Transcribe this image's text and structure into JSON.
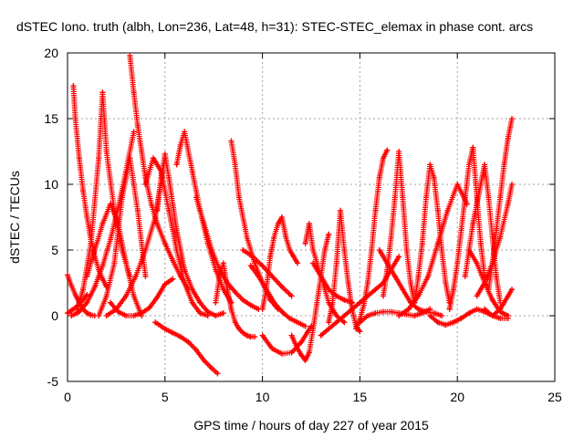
{
  "chart_data": {
    "type": "scatter",
    "title": "dSTEC Iono. truth (albh, Lon=236, Lat=48, h=31): STEC-STEC_elemax in phase cont. arcs",
    "xlabel": "GPS time / hours of day 227 of year 2015",
    "ylabel": "dSTEC  / TECUs",
    "xlim": [
      0,
      25
    ],
    "ylim": [
      -5,
      20
    ],
    "x_ticks": [
      "0",
      "5",
      "10",
      "15",
      "20",
      "25"
    ],
    "y_ticks": [
      "-5",
      "0",
      "5",
      "10",
      "15",
      "20"
    ],
    "grid": true,
    "marker": "+",
    "color": "#ff0000",
    "series": [
      {
        "x": [
          0.0,
          0.2,
          0.4,
          0.6,
          0.8,
          1.0,
          1.2,
          1.4
        ],
        "y": [
          3.1,
          2.3,
          1.6,
          1.0,
          0.5,
          0.2,
          0.05,
          0.0
        ]
      },
      {
        "x": [
          0.0,
          0.2,
          0.4,
          0.6,
          0.8,
          1.0
        ],
        "y": [
          0.2,
          0.4,
          0.6,
          0.9,
          1.2,
          1.6
        ]
      },
      {
        "x": [
          0.3,
          0.4,
          0.6,
          0.8,
          1.0,
          1.2,
          1.4,
          1.6,
          1.8,
          2.0
        ],
        "y": [
          17.5,
          15.0,
          12.0,
          9.5,
          7.5,
          5.8,
          4.5,
          3.5,
          2.8,
          2.2
        ]
      },
      {
        "x": [
          0.2,
          0.6,
          1.0,
          1.4,
          1.8,
          2.2,
          2.6,
          3.0,
          3.4
        ],
        "y": [
          0.0,
          0.3,
          1.0,
          2.2,
          3.8,
          5.8,
          8.2,
          11.0,
          14.0
        ]
      },
      {
        "x": [
          0.5,
          0.8,
          1.2,
          1.6,
          1.8,
          2.0,
          2.4,
          2.8,
          3.2
        ],
        "y": [
          0.5,
          2.0,
          5.5,
          12.0,
          17.0,
          12.5,
          8.0,
          5.0,
          3.0
        ]
      },
      {
        "x": [
          1.0,
          1.4,
          1.8,
          2.2,
          2.6,
          3.0,
          3.4,
          3.8
        ],
        "y": [
          3.0,
          5.0,
          7.0,
          8.5,
          7.0,
          4.0,
          1.5,
          0.0
        ]
      },
      {
        "x": [
          1.6,
          2.0,
          2.4,
          2.8,
          3.2,
          3.6,
          4.0
        ],
        "y": [
          0.0,
          1.5,
          4.0,
          9.0,
          12.0,
          8.0,
          3.0
        ]
      },
      {
        "x": [
          3.2,
          3.4,
          3.6,
          3.8,
          4.0,
          4.3,
          4.6,
          5.0,
          5.4,
          5.8,
          6.2
        ],
        "y": [
          19.8,
          17.0,
          14.5,
          12.5,
          10.5,
          8.5,
          7.0,
          5.5,
          4.2,
          3.0,
          2.0
        ]
      },
      {
        "x": [
          2.0,
          2.5,
          3.0,
          3.5,
          4.0,
          4.5,
          5.0
        ],
        "y": [
          0.0,
          0.5,
          1.5,
          3.0,
          5.0,
          7.5,
          12.0
        ]
      },
      {
        "x": [
          2.2,
          2.6,
          3.0,
          3.4,
          3.8,
          4.2,
          4.6,
          5.0,
          5.4
        ],
        "y": [
          1.0,
          0.3,
          0.0,
          0.0,
          0.2,
          0.6,
          1.4,
          2.4,
          2.8
        ]
      },
      {
        "x": [
          4.5,
          5.0,
          5.4,
          5.8,
          6.2,
          6.6,
          7.0,
          7.4,
          7.7
        ],
        "y": [
          -0.5,
          -1.0,
          -1.3,
          -1.6,
          -2.0,
          -2.6,
          -3.4,
          -4.0,
          -4.4
        ]
      },
      {
        "x": [
          4.6,
          4.8,
          5.0,
          5.2,
          5.4,
          5.6,
          5.8,
          6.0,
          6.4,
          6.8,
          7.2,
          7.6,
          8.0
        ],
        "y": [
          8.0,
          10.5,
          12.3,
          10.5,
          8.5,
          6.5,
          5.0,
          3.5,
          2.0,
          1.0,
          0.3,
          0.0,
          0.2
        ]
      },
      {
        "x": [
          5.6,
          5.8,
          6.0,
          6.4,
          6.8,
          7.2,
          7.6,
          8.0,
          8.4
        ],
        "y": [
          11.5,
          13.0,
          14.0,
          11.0,
          8.0,
          5.5,
          3.5,
          2.0,
          1.0
        ]
      },
      {
        "x": [
          4.0,
          4.4,
          4.8,
          5.2,
          5.6,
          6.0,
          6.4,
          6.8,
          7.2
        ],
        "y": [
          10.0,
          12.0,
          11.0,
          8.0,
          5.0,
          2.5,
          1.0,
          0.2,
          0.0
        ]
      },
      {
        "x": [
          6.6,
          7.0,
          7.4,
          7.8,
          8.2,
          8.6,
          9.0,
          9.4,
          9.8
        ],
        "y": [
          9.0,
          7.0,
          5.0,
          3.5,
          2.5,
          1.8,
          1.2,
          0.8,
          0.5
        ]
      },
      {
        "x": [
          7.6,
          7.8,
          8.0,
          8.2,
          8.4,
          8.6,
          8.8,
          9.0,
          9.2,
          9.4,
          9.6
        ],
        "y": [
          1.0,
          3.0,
          4.0,
          2.0,
          0.5,
          -0.5,
          -1.0,
          -1.3,
          -1.5,
          -1.6,
          -1.6
        ]
      },
      {
        "x": [
          8.4,
          8.6,
          8.8,
          9.2,
          9.6,
          10.0,
          10.4,
          10.8
        ],
        "y": [
          13.3,
          11.5,
          9.0,
          6.0,
          4.0,
          2.5,
          1.2,
          0.5
        ]
      },
      {
        "x": [
          9.0,
          9.5,
          10.0,
          10.5,
          11.0,
          11.5
        ],
        "y": [
          5.0,
          4.5,
          3.8,
          3.0,
          2.2,
          1.5
        ]
      },
      {
        "x": [
          9.4,
          9.8,
          10.2,
          10.6,
          11.0,
          11.4,
          11.8,
          12.2
        ],
        "y": [
          3.8,
          3.0,
          2.0,
          1.0,
          0.3,
          -0.2,
          -0.5,
          -0.8
        ]
      },
      {
        "x": [
          10.0,
          10.2,
          10.4,
          10.6,
          10.8,
          11.0,
          11.2,
          11.4,
          11.6,
          11.8
        ],
        "y": [
          0.5,
          2.0,
          4.5,
          6.0,
          7.0,
          7.5,
          6.0,
          5.0,
          4.5,
          4.0
        ]
      },
      {
        "x": [
          10.0,
          10.5,
          11.0,
          11.5,
          12.0,
          12.5
        ],
        "y": [
          -1.5,
          -2.5,
          -2.9,
          -2.8,
          -2.0,
          -0.8
        ]
      },
      {
        "x": [
          11.5,
          11.8,
          12.0,
          12.2,
          12.4,
          12.6,
          12.8,
          13.0,
          13.2,
          13.4
        ],
        "y": [
          -1.5,
          -2.5,
          -3.0,
          -3.4,
          -2.8,
          -1.0,
          1.0,
          3.0,
          5.0,
          6.2
        ]
      },
      {
        "x": [
          12.2,
          12.4,
          12.6,
          13.0,
          13.4,
          13.8,
          14.2
        ],
        "y": [
          5.5,
          7.0,
          5.0,
          3.0,
          1.0,
          0.0,
          -0.5
        ]
      },
      {
        "x": [
          12.6,
          13.0,
          13.4,
          13.8,
          14.2,
          14.6
        ],
        "y": [
          4.0,
          3.0,
          2.0,
          1.5,
          1.2,
          1.0
        ]
      },
      {
        "x": [
          13.4,
          13.6,
          13.8,
          14.0,
          14.2,
          14.4,
          14.6,
          14.8,
          15.0
        ],
        "y": [
          -0.5,
          1.0,
          4.0,
          8.0,
          5.0,
          2.5,
          0.5,
          -0.8,
          -1.2
        ]
      },
      {
        "x": [
          13.0,
          13.4,
          13.8,
          14.2,
          14.6,
          15.0,
          15.4,
          15.8,
          16.2,
          16.6,
          17.0
        ],
        "y": [
          -1.5,
          -1.0,
          -0.5,
          0.0,
          0.5,
          1.0,
          1.5,
          2.0,
          2.5,
          3.5,
          4.5
        ]
      },
      {
        "x": [
          14.8,
          15.0,
          15.2,
          15.4,
          15.6,
          15.8,
          16.0,
          16.2,
          16.4
        ],
        "y": [
          -1.0,
          -0.3,
          0.8,
          2.5,
          5.0,
          8.0,
          10.5,
          12.0,
          12.6
        ]
      },
      {
        "x": [
          15.0,
          15.4,
          15.8,
          16.2,
          16.6,
          17.0,
          17.4,
          17.8,
          18.2,
          18.6
        ],
        "y": [
          -0.5,
          0.0,
          0.2,
          0.3,
          0.3,
          0.2,
          0.1,
          0.0,
          0.2,
          0.5
        ]
      },
      {
        "x": [
          16.0,
          16.4,
          16.8,
          17.2,
          17.6,
          18.0,
          18.4,
          18.8,
          19.2
        ],
        "y": [
          5.0,
          4.0,
          3.0,
          2.0,
          1.0,
          0.5,
          0.3,
          0.2,
          0.0
        ]
      },
      {
        "x": [
          16.2,
          16.4,
          16.6,
          16.8,
          17.0,
          17.2,
          17.4,
          17.6,
          17.8
        ],
        "y": [
          1.5,
          3.5,
          6.0,
          9.0,
          12.5,
          9.0,
          5.0,
          2.5,
          1.0
        ]
      },
      {
        "x": [
          17.0,
          17.5,
          18.0,
          18.5,
          19.0,
          19.5,
          20.0,
          20.5
        ],
        "y": [
          0.0,
          0.5,
          1.5,
          3.0,
          5.5,
          8.0,
          10.0,
          8.5
        ]
      },
      {
        "x": [
          17.8,
          18.0,
          18.2,
          18.4,
          18.6,
          18.8,
          19.0,
          19.2,
          19.4,
          19.6
        ],
        "y": [
          1.0,
          3.0,
          5.5,
          9.0,
          11.5,
          10.5,
          8.0,
          5.0,
          2.5,
          1.0
        ]
      },
      {
        "x": [
          18.6,
          19.0,
          19.4,
          19.8,
          20.2,
          20.6,
          21.0,
          21.4,
          21.8,
          22.2,
          22.6
        ],
        "y": [
          0.0,
          -0.5,
          -0.7,
          -0.5,
          -0.2,
          0.2,
          0.5,
          0.3,
          0.0,
          -0.2,
          -0.2
        ]
      },
      {
        "x": [
          19.6,
          19.8,
          20.0,
          20.2,
          20.4,
          20.6,
          20.8,
          21.0,
          21.2,
          21.4
        ],
        "y": [
          0.5,
          2.0,
          4.0,
          6.5,
          9.0,
          11.5,
          12.8,
          9.0,
          5.5,
          3.0
        ]
      },
      {
        "x": [
          20.4,
          20.6,
          20.8,
          21.0,
          21.2,
          21.4,
          21.6,
          21.8,
          22.0,
          22.2
        ],
        "y": [
          3.0,
          5.0,
          7.0,
          8.5,
          10.0,
          11.5,
          9.0,
          6.0,
          3.0,
          1.0
        ]
      },
      {
        "x": [
          21.4,
          21.8,
          22.2,
          22.4,
          22.6,
          22.8
        ],
        "y": [
          0.5,
          0.0,
          0.5,
          1.0,
          1.5,
          2.0
        ]
      },
      {
        "x": [
          21.6,
          21.8,
          22.0,
          22.2,
          22.4,
          22.6,
          22.8
        ],
        "y": [
          2.0,
          4.0,
          6.5,
          9.0,
          11.5,
          13.5,
          15.0
        ]
      },
      {
        "x": [
          21.0,
          21.4,
          21.8,
          22.2,
          22.6,
          22.8
        ],
        "y": [
          1.5,
          2.5,
          4.0,
          6.0,
          8.5,
          10.0
        ]
      },
      {
        "x": [
          20.6,
          21.0,
          21.4,
          21.8,
          22.2,
          22.6
        ],
        "y": [
          5.0,
          4.0,
          2.5,
          1.2,
          0.3,
          0.0
        ]
      }
    ]
  }
}
